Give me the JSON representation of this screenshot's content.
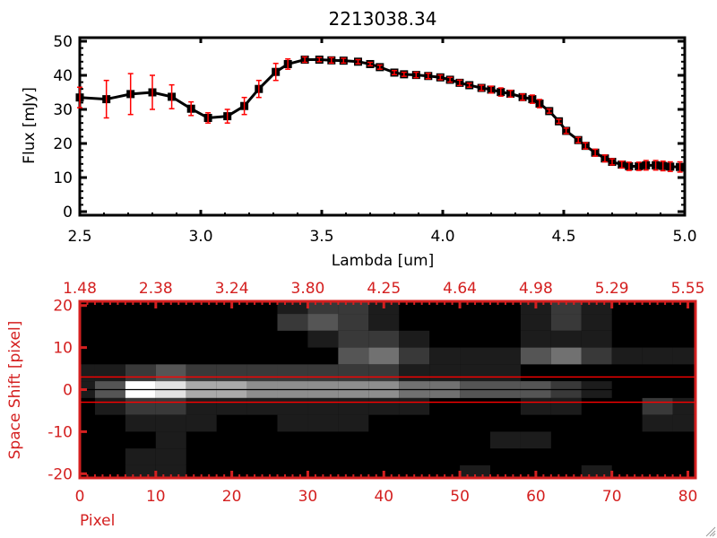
{
  "colors": {
    "axis_top": "#000000",
    "error_bar": "#ff0000",
    "axis_bottom": "#d42020",
    "aperture_line": "#ff0000",
    "center_line": "#000000"
  },
  "chart_data": [
    {
      "type": "line",
      "title": "2213038.34",
      "xlabel": "Lambda [um]",
      "ylabel": "Flux [mJy]",
      "xlim": [
        2.5,
        5.0
      ],
      "ylim": [
        0,
        50
      ],
      "xticks": [
        "2.5",
        "3.0",
        "3.5",
        "4.0",
        "4.5",
        "5.0"
      ],
      "yticks": [
        "0",
        "10",
        "20",
        "30",
        "40",
        "50"
      ],
      "grid": false,
      "marker": "square",
      "x": [
        2.5,
        2.61,
        2.71,
        2.8,
        2.88,
        2.96,
        3.03,
        3.11,
        3.18,
        3.24,
        3.31,
        3.36,
        3.43,
        3.49,
        3.54,
        3.59,
        3.65,
        3.7,
        3.74,
        3.8,
        3.84,
        3.89,
        3.94,
        3.99,
        4.03,
        4.07,
        4.11,
        4.16,
        4.2,
        4.24,
        4.28,
        4.33,
        4.37,
        4.4,
        4.44,
        4.48,
        4.51,
        4.56,
        4.59,
        4.63,
        4.67,
        4.7,
        4.74,
        4.77,
        4.81,
        4.84,
        4.88,
        4.91,
        4.94,
        4.98
      ],
      "y": [
        33.5,
        33.0,
        34.5,
        35.0,
        33.7,
        30.2,
        27.5,
        28.0,
        31.0,
        36.0,
        41.0,
        43.3,
        44.6,
        44.6,
        44.4,
        44.3,
        44.0,
        43.3,
        42.4,
        40.8,
        40.3,
        40.1,
        39.8,
        39.4,
        38.7,
        37.8,
        37.1,
        36.3,
        35.8,
        35.1,
        34.6,
        33.6,
        33.0,
        31.7,
        29.5,
        26.5,
        23.7,
        21.0,
        19.3,
        17.3,
        15.6,
        14.6,
        13.8,
        13.3,
        13.3,
        13.6,
        13.6,
        13.4,
        13.2,
        13.1
      ],
      "yerr": [
        3.0,
        5.5,
        6.0,
        5.0,
        3.5,
        2.0,
        1.5,
        2.0,
        2.5,
        2.5,
        2.5,
        1.5,
        0.8,
        0.6,
        0.8,
        0.7,
        0.6,
        0.5,
        0.6,
        0.6,
        0.6,
        0.8,
        0.8,
        0.7,
        0.7,
        0.8,
        0.6,
        0.8,
        1.0,
        1.2,
        1.0,
        0.9,
        1.2,
        1.2,
        0.6,
        0.6,
        0.8,
        0.8,
        0.9,
        1.0,
        1.0,
        0.9,
        1.0,
        1.2,
        1.2,
        1.4,
        1.4,
        1.4,
        1.4,
        1.5
      ]
    },
    {
      "type": "heatmap",
      "xlabel": "Pixel",
      "ylabel": "Space Shift [pixel]",
      "xlim": [
        0,
        81
      ],
      "ylim": [
        -21,
        21
      ],
      "xticks": [
        "0",
        "10",
        "20",
        "30",
        "40",
        "50",
        "60",
        "70",
        "80"
      ],
      "yticks": [
        "-20",
        "-10",
        "0",
        "10",
        "20"
      ],
      "top_axis_ticks": [
        "1.48",
        "2.38",
        "3.24",
        "3.80",
        "4.25",
        "4.64",
        "4.98",
        "5.29",
        "5.55"
      ],
      "colormap": "grayscale",
      "intensity_range": [
        0,
        9
      ],
      "x_centers": [
        0,
        4,
        8,
        12,
        16,
        20,
        24,
        28,
        32,
        36,
        40,
        44,
        48,
        52,
        56,
        60,
        64,
        68,
        72,
        76,
        80
      ],
      "y_centers": [
        20,
        16,
        12,
        8,
        4,
        0,
        -4,
        -8,
        -12,
        -16,
        -20
      ],
      "z": [
        [
          0,
          0,
          0,
          0,
          0,
          0,
          0,
          1,
          2,
          2,
          1,
          0,
          0,
          0,
          0,
          1,
          2,
          1,
          0,
          0,
          0
        ],
        [
          0,
          0,
          0,
          0,
          0,
          0,
          0,
          2,
          3,
          2,
          1,
          0,
          0,
          0,
          0,
          1,
          2,
          1,
          0,
          0,
          0
        ],
        [
          0,
          0,
          0,
          0,
          0,
          0,
          0,
          0,
          1,
          2,
          2,
          1,
          0,
          0,
          0,
          1,
          1,
          1,
          0,
          0,
          0
        ],
        [
          0,
          0,
          0,
          0,
          0,
          0,
          0,
          0,
          0,
          3,
          4,
          2,
          1,
          1,
          1,
          3,
          4,
          2,
          1,
          1,
          1
        ],
        [
          1,
          1,
          2,
          3,
          2,
          2,
          2,
          2,
          2,
          2,
          2,
          1,
          1,
          1,
          1,
          0,
          0,
          0,
          0,
          0,
          0
        ],
        [
          1,
          3,
          9,
          8,
          6,
          6,
          5,
          5,
          5,
          5,
          5,
          4,
          4,
          3,
          3,
          3,
          2,
          1,
          0,
          0,
          0
        ],
        [
          0,
          1,
          2,
          2,
          1,
          1,
          1,
          1,
          1,
          1,
          1,
          1,
          0,
          0,
          0,
          1,
          1,
          0,
          0,
          2,
          1
        ],
        [
          0,
          0,
          1,
          1,
          1,
          0,
          0,
          1,
          1,
          1,
          0,
          0,
          0,
          0,
          0,
          0,
          0,
          0,
          0,
          1,
          1
        ],
        [
          0,
          0,
          0,
          1,
          0,
          0,
          0,
          0,
          0,
          0,
          0,
          0,
          0,
          0,
          1,
          1,
          0,
          0,
          0,
          0,
          0
        ],
        [
          0,
          0,
          1,
          1,
          0,
          0,
          0,
          0,
          0,
          0,
          0,
          0,
          0,
          0,
          0,
          0,
          0,
          0,
          0,
          0,
          0
        ],
        [
          0,
          0,
          1,
          1,
          0,
          0,
          0,
          0,
          0,
          0,
          0,
          0,
          0,
          1,
          0,
          0,
          0,
          1,
          0,
          0,
          0
        ]
      ],
      "horizontal_lines": [
        {
          "y": 3,
          "color": "#ff0000"
        },
        {
          "y": 0,
          "color": "#000000"
        },
        {
          "y": -3,
          "color": "#ff0000"
        }
      ]
    }
  ]
}
